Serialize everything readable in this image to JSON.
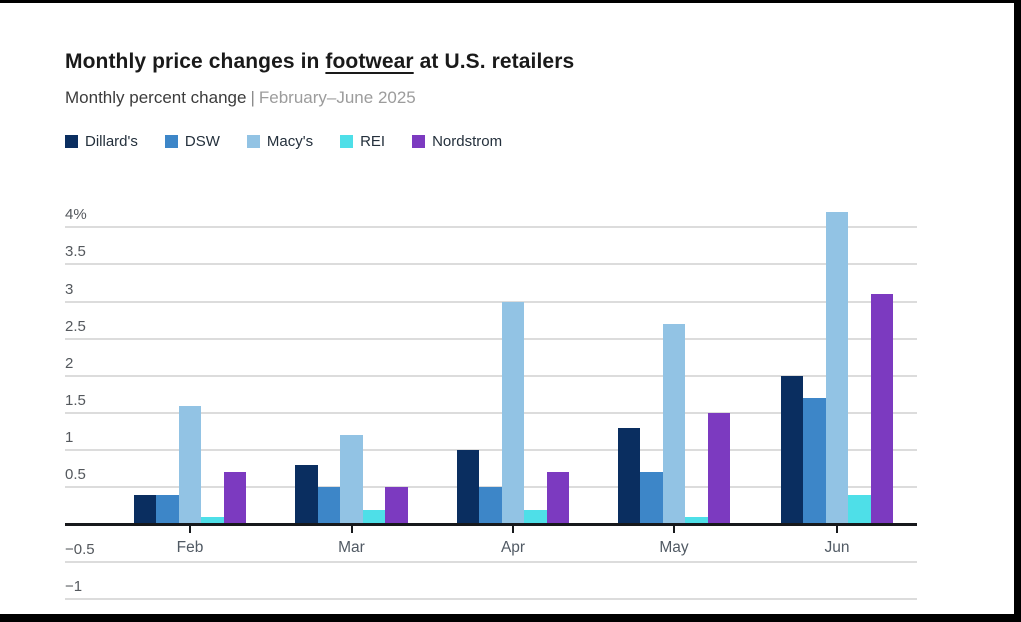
{
  "header": {
    "title_prefix": "Monthly price changes in ",
    "title_underline": "footwear",
    "title_suffix": " at U.S. retailers",
    "subtitle": "Monthly percent change",
    "subtitle_separator": "|",
    "subtitle_period": "February–June 2025"
  },
  "legend": {
    "items": [
      {
        "label": "Dillard's",
        "color": "#0a2e60"
      },
      {
        "label": "DSW",
        "color": "#3d86c8"
      },
      {
        "label": "Macy's",
        "color": "#92c3e4"
      },
      {
        "label": "REI",
        "color": "#4edfe8"
      },
      {
        "label": "Nordstrom",
        "color": "#7c3ac0"
      }
    ]
  },
  "chart_data": {
    "type": "bar",
    "title": "Monthly price changes in footwear at U.S. retailers",
    "subtitle": "Monthly percent change | February–June 2025",
    "xlabel": "",
    "ylabel": "Monthly percent change",
    "categories": [
      "Feb",
      "Mar",
      "Apr",
      "May",
      "Jun"
    ],
    "series": [
      {
        "name": "Dillard's",
        "color": "#0a2e60",
        "values": [
          0.4,
          0.8,
          1.0,
          1.3,
          2.0
        ]
      },
      {
        "name": "DSW",
        "color": "#3d86c8",
        "values": [
          0.4,
          0.5,
          0.5,
          0.7,
          1.7
        ]
      },
      {
        "name": "Macy's",
        "color": "#92c3e4",
        "values": [
          1.6,
          1.2,
          3.0,
          2.7,
          4.2
        ]
      },
      {
        "name": "REI",
        "color": "#4edfe8",
        "values": [
          0.1,
          0.2,
          0.2,
          0.1,
          0.4
        ]
      },
      {
        "name": "Nordstrom",
        "color": "#7c3ac0",
        "values": [
          0.7,
          0.5,
          0.7,
          1.5,
          3.1
        ]
      }
    ],
    "ylim": [
      -1,
      4.3
    ],
    "ytick_step": 0.5,
    "yticks": [
      {
        "value": 4,
        "label": "4%"
      },
      {
        "value": 3.5,
        "label": "3.5"
      },
      {
        "value": 3,
        "label": "3"
      },
      {
        "value": 2.5,
        "label": "2.5"
      },
      {
        "value": 2,
        "label": "2"
      },
      {
        "value": 1.5,
        "label": "1.5"
      },
      {
        "value": 1,
        "label": "1"
      },
      {
        "value": 0.5,
        "label": "0.5"
      },
      {
        "value": -0.5,
        "label": "−0.5"
      },
      {
        "value": -1,
        "label": "−1"
      }
    ],
    "grid": true,
    "legend_position": "top",
    "bar_groups_contiguous": true
  }
}
